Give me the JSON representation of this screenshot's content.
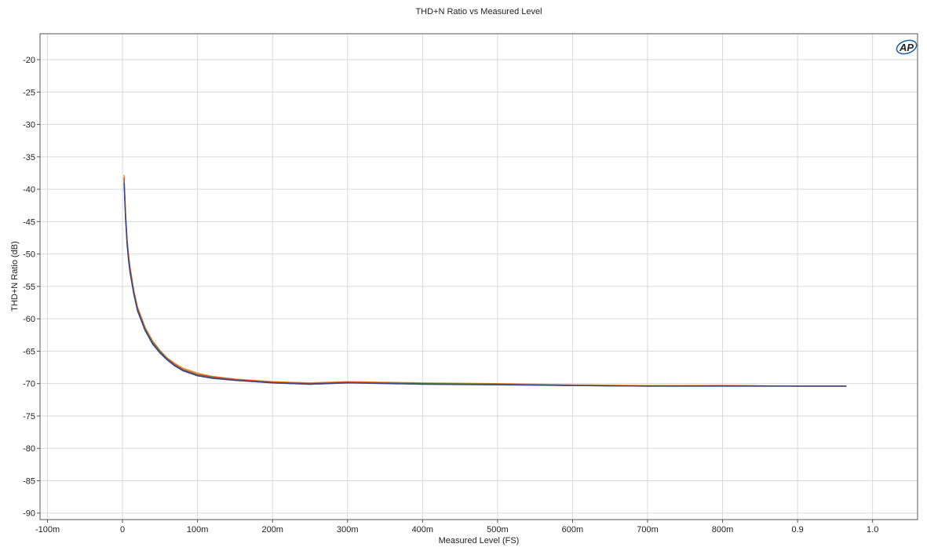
{
  "chart_data": {
    "type": "line",
    "title": "THD+N Ratio vs Measured Level",
    "xlabel": "Measured Level (FS)",
    "ylabel": "THD+N Ratio (dB)",
    "xlim": [
      -0.11,
      1.06
    ],
    "ylim": [
      -91,
      -16
    ],
    "x_ticks": [
      -0.1,
      0.0,
      0.1,
      0.2,
      0.3,
      0.4,
      0.5,
      0.6,
      0.7,
      0.8,
      0.9,
      1.0
    ],
    "x_tick_labels": [
      "-100m",
      "0",
      "100m",
      "200m",
      "300m",
      "400m",
      "500m",
      "600m",
      "700m",
      "800m",
      "0.9",
      "1.0"
    ],
    "y_ticks": [
      -20,
      -25,
      -30,
      -35,
      -40,
      -45,
      -50,
      -55,
      -60,
      -65,
      -70,
      -75,
      -80,
      -85,
      -90
    ],
    "y_tick_labels": [
      "-20",
      "-25",
      "-30",
      "-35",
      "-40",
      "-45",
      "-50",
      "-55",
      "-60",
      "-65",
      "-70",
      "-75",
      "-80",
      "-85",
      "-90"
    ],
    "grid": true,
    "logo": "AP",
    "colors": {
      "grid": "#d9d9d9",
      "axis": "#555555",
      "logo": "#1f5fa8"
    },
    "series": [
      {
        "color": "#e8862a",
        "x": [
          0.002,
          0.004,
          0.006,
          0.008,
          0.01,
          0.015,
          0.02,
          0.03,
          0.04,
          0.05,
          0.06,
          0.07,
          0.08,
          0.1,
          0.12,
          0.15,
          0.2,
          0.25,
          0.3,
          0.35,
          0.4,
          0.5,
          0.6,
          0.7,
          0.8,
          0.9,
          0.965
        ],
        "y": [
          -37.8,
          -43.5,
          -47.5,
          -50.0,
          -52.0,
          -55.6,
          -58.2,
          -61.3,
          -63.4,
          -64.9,
          -66.1,
          -66.9,
          -67.6,
          -68.4,
          -68.9,
          -69.3,
          -69.7,
          -69.9,
          -69.7,
          -69.8,
          -69.9,
          -70.0,
          -70.2,
          -70.3,
          -70.3,
          -70.4,
          -70.4
        ]
      },
      {
        "color": "#d9342b",
        "x": [
          0.002,
          0.004,
          0.006,
          0.008,
          0.01,
          0.015,
          0.02,
          0.03,
          0.04,
          0.05,
          0.06,
          0.07,
          0.08,
          0.1,
          0.12,
          0.15,
          0.2,
          0.25,
          0.3,
          0.35,
          0.4,
          0.5,
          0.6,
          0.7,
          0.8,
          0.9,
          0.965
        ],
        "y": [
          -38.2,
          -43.9,
          -47.8,
          -50.4,
          -52.3,
          -55.8,
          -58.4,
          -61.5,
          -63.6,
          -65.0,
          -66.2,
          -67.1,
          -67.8,
          -68.6,
          -69.0,
          -69.4,
          -69.8,
          -70.0,
          -69.8,
          -69.9,
          -70.0,
          -70.1,
          -70.3,
          -70.4,
          -70.3,
          -70.4,
          -70.4
        ]
      },
      {
        "color": "#3c8a3e",
        "x": [
          0.002,
          0.004,
          0.006,
          0.008,
          0.01,
          0.015,
          0.02,
          0.03,
          0.04,
          0.05,
          0.06,
          0.07,
          0.08,
          0.1,
          0.12,
          0.15,
          0.2,
          0.25,
          0.3,
          0.35,
          0.4,
          0.5,
          0.6,
          0.7,
          0.8,
          0.9,
          0.965
        ],
        "y": [
          -38.6,
          -44.2,
          -48.1,
          -50.7,
          -52.6,
          -56.0,
          -58.6,
          -61.6,
          -63.7,
          -65.1,
          -66.3,
          -67.2,
          -67.9,
          -68.7,
          -69.1,
          -69.5,
          -69.9,
          -70.1,
          -69.9,
          -69.9,
          -70.0,
          -70.1,
          -70.3,
          -70.4,
          -70.4,
          -70.4,
          -70.4
        ]
      },
      {
        "color": "#3a3f8f",
        "x": [
          0.002,
          0.004,
          0.006,
          0.008,
          0.01,
          0.015,
          0.02,
          0.03,
          0.04,
          0.05,
          0.06,
          0.07,
          0.08,
          0.1,
          0.12,
          0.15,
          0.2,
          0.25,
          0.3,
          0.35,
          0.4,
          0.5,
          0.6,
          0.7,
          0.8,
          0.9,
          0.965
        ],
        "y": [
          -39.0,
          -44.5,
          -48.4,
          -51.0,
          -52.9,
          -56.2,
          -58.8,
          -61.8,
          -63.9,
          -65.3,
          -66.4,
          -67.3,
          -68.0,
          -68.8,
          -69.2,
          -69.5,
          -69.9,
          -70.1,
          -69.9,
          -70.0,
          -70.1,
          -70.2,
          -70.3,
          -70.4,
          -70.4,
          -70.4,
          -70.4
        ]
      }
    ]
  }
}
